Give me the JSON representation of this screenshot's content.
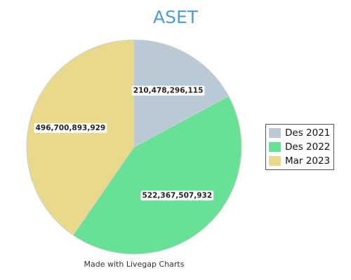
{
  "chart_data": {
    "type": "pie",
    "title": "ASET",
    "categories": [
      "Des 2021",
      "Des 2022",
      "Mar 2023"
    ],
    "values": [
      210478296115,
      522367507932,
      496700893929
    ],
    "value_labels": [
      "210,478,296,115",
      "522,367,507,932",
      "496,700,893,929"
    ],
    "colors": [
      "#b9c9d6",
      "#66e196",
      "#e9d98a"
    ],
    "legend_position": "right"
  },
  "credit": "Made with Livegap Charts"
}
